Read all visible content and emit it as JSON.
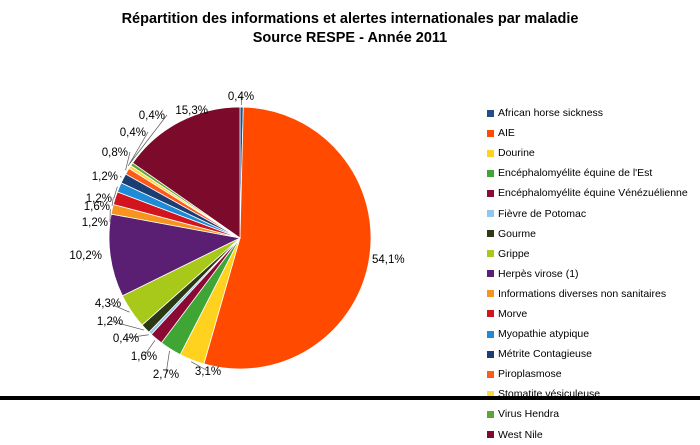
{
  "chart_data": {
    "type": "pie",
    "title": "Répartition des informations et alertes internationales par maladie",
    "subtitle": "Source RESPE - Année 2011",
    "legend_position": "right",
    "slices": [
      {
        "name": "African horse sickness",
        "value": 0.4,
        "label": "0,4%",
        "color": "#1f4e8c"
      },
      {
        "name": "AIE",
        "value": 54.1,
        "label": "54,1%",
        "color": "#ff4a00"
      },
      {
        "name": "Dourine",
        "value": 3.1,
        "label": "3,1%",
        "color": "#ffd21f"
      },
      {
        "name": "Encéphalomyélite équine de l'Est",
        "value": 2.7,
        "label": "2,7%",
        "color": "#3fa535"
      },
      {
        "name": "Encéphalomyélite équine Vénézuélienne",
        "value": 1.6,
        "label": "1,6%",
        "color": "#8b0a33"
      },
      {
        "name": "Fièvre de Potomac",
        "value": 0.4,
        "label": "0,4%",
        "color": "#8fc8ee"
      },
      {
        "name": "Gourme",
        "value": 1.2,
        "label": "1,2%",
        "color": "#2b3a12"
      },
      {
        "name": "Grippe",
        "value": 4.3,
        "label": "4,3%",
        "color": "#a8c81a"
      },
      {
        "name": "Herpès virose (1)",
        "value": 10.2,
        "label": "10,2%",
        "color": "#5a1f72"
      },
      {
        "name": "Informations diverses non sanitaires",
        "value": 1.2,
        "label": "1,2%",
        "color": "#f7941d"
      },
      {
        "name": "Morve",
        "value": 1.6,
        "label": "1,6%",
        "color": "#d2141e"
      },
      {
        "name": "Myopathie atypique",
        "value": 1.2,
        "label": "1,2%",
        "color": "#1e8bd6"
      },
      {
        "name": "Métrite Contagieuse",
        "value": 1.2,
        "label": "1,2%",
        "color": "#1c3d74"
      },
      {
        "name": "Piroplasmose",
        "value": 0.8,
        "label": "0,8%",
        "color": "#ff5a1a"
      },
      {
        "name": "Stomatite vésiculeuse",
        "value": 0.4,
        "label": "0,4%",
        "color": "#ffd83a"
      },
      {
        "name": "Virus Hendra",
        "value": 0.4,
        "label": "0,4%",
        "color": "#5aa832"
      },
      {
        "name": "West Nile",
        "value": 15.3,
        "label": "15,3%",
        "color": "#7c0a2a"
      }
    ]
  }
}
